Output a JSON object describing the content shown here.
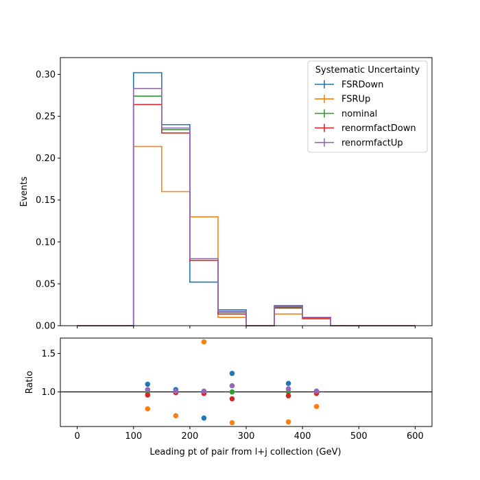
{
  "chart_data": [
    {
      "type": "step",
      "xlabel": "",
      "ylabel": "Events",
      "xlim": [
        -30,
        630
      ],
      "ylim": [
        0,
        0.32
      ],
      "bin_edges": [
        0,
        50,
        100,
        150,
        200,
        250,
        300,
        350,
        400,
        450,
        500,
        550,
        600
      ],
      "yticks": [
        0.0,
        0.05,
        0.1,
        0.15,
        0.2,
        0.25,
        0.3
      ],
      "ytick_labels": [
        "0.00",
        "0.05",
        "0.10",
        "0.15",
        "0.20",
        "0.25",
        "0.30"
      ],
      "legend": {
        "title": "Systematic Uncertainty",
        "location": "upper right"
      },
      "series": [
        {
          "name": "FSRDown",
          "color": "#1f77b4",
          "values": [
            0,
            0,
            0.302,
            0.24,
            0.052,
            0.019,
            0,
            0.024,
            0.01,
            0,
            0,
            0
          ]
        },
        {
          "name": "FSRUp",
          "color": "#ff7f0e",
          "values": [
            0,
            0,
            0.214,
            0.16,
            0.13,
            0.01,
            0,
            0.014,
            0.008,
            0,
            0,
            0
          ]
        },
        {
          "name": "nominal",
          "color": "#2ca02c",
          "values": [
            0,
            0,
            0.274,
            0.234,
            0.08,
            0.016,
            0,
            0.022,
            0.01,
            0,
            0,
            0
          ]
        },
        {
          "name": "renormfactDown",
          "color": "#d62728",
          "values": [
            0,
            0,
            0.264,
            0.23,
            0.078,
            0.014,
            0,
            0.021,
            0.009,
            0,
            0,
            0
          ]
        },
        {
          "name": "renormfactUp",
          "color": "#9467bd",
          "values": [
            0,
            0,
            0.283,
            0.236,
            0.08,
            0.017,
            0,
            0.023,
            0.01,
            0,
            0,
            0
          ]
        }
      ]
    },
    {
      "type": "scatter",
      "xlabel": "Leading pt of pair from l+j collection (GeV)",
      "ylabel": "Ratio",
      "xlim": [
        -30,
        630
      ],
      "ylim": [
        0.55,
        1.7
      ],
      "reference_line": 1.0,
      "xticks": [
        0,
        100,
        200,
        300,
        400,
        500,
        600
      ],
      "xtick_labels": [
        "0",
        "100",
        "200",
        "300",
        "400",
        "500",
        "600"
      ],
      "yticks": [
        1.0,
        1.5
      ],
      "ytick_labels": [
        "1.0",
        "1.5"
      ],
      "series": [
        {
          "name": "FSRDown",
          "color": "#1f77b4",
          "x": [
            125,
            175,
            225,
            275,
            375,
            425
          ],
          "y": [
            1.1,
            1.03,
            0.66,
            1.24,
            1.11,
            1.01
          ]
        },
        {
          "name": "FSRUp",
          "color": "#ff7f0e",
          "x": [
            125,
            175,
            225,
            275,
            375,
            425
          ],
          "y": [
            0.78,
            0.69,
            1.65,
            0.6,
            0.61,
            0.81
          ]
        },
        {
          "name": "nominal",
          "color": "#2ca02c",
          "x": [
            125,
            175,
            225,
            275,
            375,
            425
          ],
          "y": [
            1.0,
            1.0,
            1.0,
            1.0,
            1.0,
            1.0
          ]
        },
        {
          "name": "renormfactDown",
          "color": "#d62728",
          "x": [
            125,
            175,
            225,
            275,
            375,
            425
          ],
          "y": [
            0.96,
            0.99,
            0.98,
            0.91,
            0.95,
            0.98
          ]
        },
        {
          "name": "renormfactUp",
          "color": "#9467bd",
          "x": [
            125,
            175,
            225,
            275,
            375,
            425
          ],
          "y": [
            1.03,
            1.01,
            1.01,
            1.08,
            1.04,
            1.01
          ]
        }
      ]
    }
  ]
}
